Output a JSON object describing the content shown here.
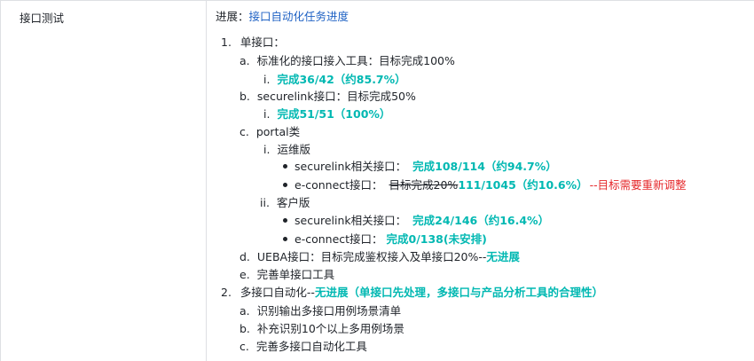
{
  "row_label": "接口测试",
  "progress": {
    "label": "进展：",
    "title": "接口自动化任务进度"
  },
  "items": {
    "i1_num": "1.",
    "i1_text": "单接口：",
    "a_num": "a.",
    "a_text": "标准化的接口接入工具：目标完成100%",
    "a_i_num": "i.",
    "a_i_value": "完成36/42（约85.7%）",
    "b_num": "b.",
    "b_text": "securelink接口：目标完成50%",
    "b_i_num": "i.",
    "b_i_value": "完成51/51（100%）",
    "c_num": "c.",
    "c_text": "portal类",
    "c_i_num": "i.",
    "c_i_text": "运维版",
    "c_i_b1_label": "securelink相关接口：",
    "c_i_b1_value": "完成108/114（约94.7%）",
    "c_i_b2_label": "e-connect接口：",
    "c_i_b2_struck": "目标完成20%",
    "c_i_b2_value": "111/1045（约10.6%）",
    "c_i_b2_note": "--目标需要重新调整",
    "c_ii_num": "ii.",
    "c_ii_text": "客户版",
    "c_ii_b1_label": "securelink相关接口：",
    "c_ii_b1_value": "完成24/146（约16.4%）",
    "c_ii_b2_label": "e-connect接口：",
    "c_ii_b2_value": "完成0/138(未安排)",
    "d_num": "d.",
    "d_text": "UEBA接口：目标完成鉴权接入及单接口20%--",
    "d_value": "无进展",
    "e_num": "e.",
    "e_text": "完善单接口工具",
    "i2_num": "2.",
    "i2_text": "多接口自动化--",
    "i2_value": "无进展（单接口先处理，多接口与产品分析工具的合理性）",
    "i2_a_num": "a.",
    "i2_a_text": "识别输出多接口用例场景清单",
    "i2_b_num": "b.",
    "i2_b_text": "补充识别10个以上多用例场景",
    "i2_c_num": "c.",
    "i2_c_text": "完善多接口自动化工具"
  }
}
